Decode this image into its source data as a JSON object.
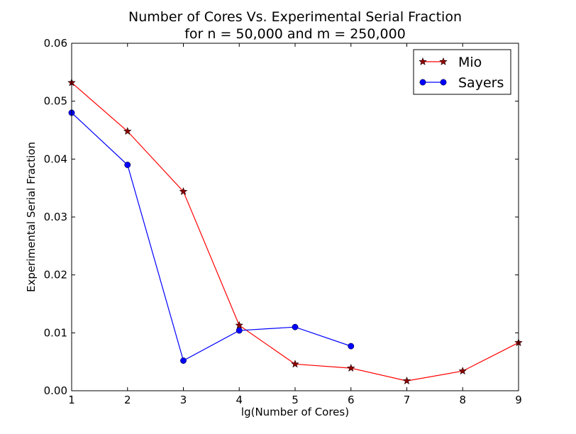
{
  "chart_data": {
    "type": "line",
    "title_line1": "Number of Cores Vs. Experimental Serial Fraction",
    "title_line2": "for n = 50,000 and m = 250,000",
    "xlabel": "lg(Number of Cores)",
    "ylabel": "Experimental Serial Fraction",
    "xlim": [
      1,
      9
    ],
    "ylim": [
      0,
      0.06
    ],
    "x_ticks": [
      "1",
      "2",
      "3",
      "4",
      "5",
      "6",
      "7",
      "8",
      "9"
    ],
    "y_ticks": [
      "0.00",
      "0.01",
      "0.02",
      "0.03",
      "0.04",
      "0.05",
      "0.06"
    ],
    "grid": false,
    "legend_position": "top-right",
    "series": [
      {
        "name": "Mio",
        "color": "#ff0000",
        "marker": "star",
        "marker_color": "#8b0000",
        "x": [
          1,
          2,
          3,
          4,
          5,
          6,
          7,
          8,
          9
        ],
        "values": [
          0.0532,
          0.0448,
          0.0344,
          0.0113,
          0.0046,
          0.0039,
          0.0017,
          0.0034,
          0.0083
        ]
      },
      {
        "name": "Sayers",
        "color": "#0000ff",
        "marker": "circle",
        "marker_color": "#0000ff",
        "x": [
          1,
          2,
          3,
          4,
          5,
          6
        ],
        "values": [
          0.048,
          0.039,
          0.0052,
          0.0104,
          0.011,
          0.0077
        ]
      }
    ]
  }
}
